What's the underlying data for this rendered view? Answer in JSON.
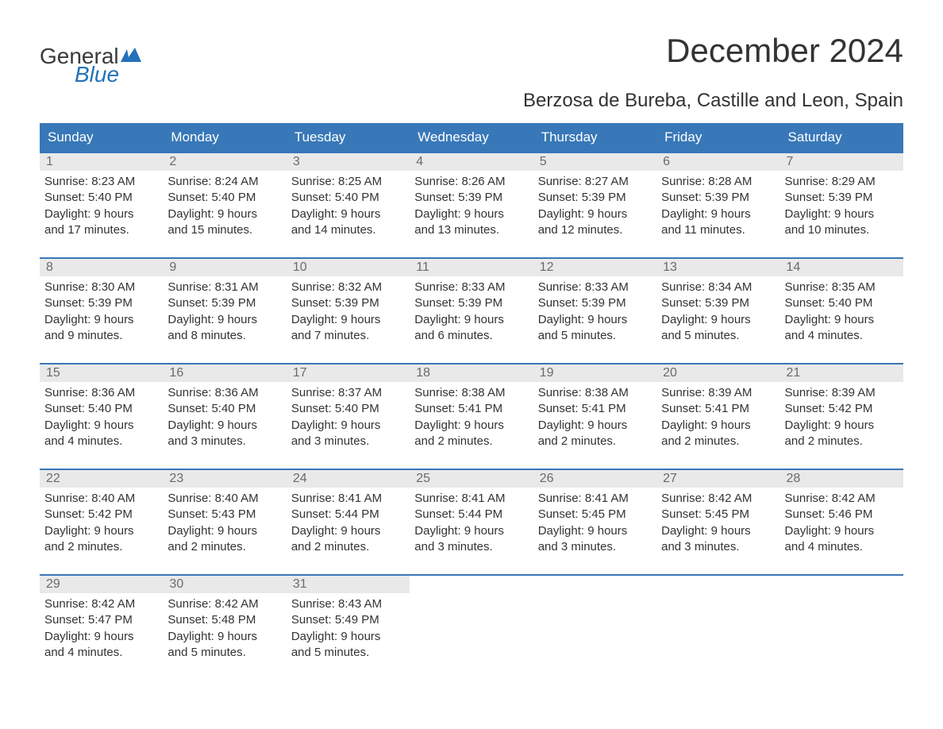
{
  "brand": {
    "general": "General",
    "blue": "Blue"
  },
  "title": "December 2024",
  "subtitle": "Berzosa de Bureba, Castille and Leon, Spain",
  "colors": {
    "header_bg": "#3878b8",
    "header_text": "#ffffff",
    "daynum_bg": "#e9e9e9",
    "daynum_text": "#6a6a6a",
    "body_text": "#333333",
    "accent": "#2472b8",
    "background": "#ffffff"
  },
  "day_names": [
    "Sunday",
    "Monday",
    "Tuesday",
    "Wednesday",
    "Thursday",
    "Friday",
    "Saturday"
  ],
  "weeks": [
    [
      {
        "n": "1",
        "sunrise": "Sunrise: 8:23 AM",
        "sunset": "Sunset: 5:40 PM",
        "d1": "Daylight: 9 hours",
        "d2": "and 17 minutes."
      },
      {
        "n": "2",
        "sunrise": "Sunrise: 8:24 AM",
        "sunset": "Sunset: 5:40 PM",
        "d1": "Daylight: 9 hours",
        "d2": "and 15 minutes."
      },
      {
        "n": "3",
        "sunrise": "Sunrise: 8:25 AM",
        "sunset": "Sunset: 5:40 PM",
        "d1": "Daylight: 9 hours",
        "d2": "and 14 minutes."
      },
      {
        "n": "4",
        "sunrise": "Sunrise: 8:26 AM",
        "sunset": "Sunset: 5:39 PM",
        "d1": "Daylight: 9 hours",
        "d2": "and 13 minutes."
      },
      {
        "n": "5",
        "sunrise": "Sunrise: 8:27 AM",
        "sunset": "Sunset: 5:39 PM",
        "d1": "Daylight: 9 hours",
        "d2": "and 12 minutes."
      },
      {
        "n": "6",
        "sunrise": "Sunrise: 8:28 AM",
        "sunset": "Sunset: 5:39 PM",
        "d1": "Daylight: 9 hours",
        "d2": "and 11 minutes."
      },
      {
        "n": "7",
        "sunrise": "Sunrise: 8:29 AM",
        "sunset": "Sunset: 5:39 PM",
        "d1": "Daylight: 9 hours",
        "d2": "and 10 minutes."
      }
    ],
    [
      {
        "n": "8",
        "sunrise": "Sunrise: 8:30 AM",
        "sunset": "Sunset: 5:39 PM",
        "d1": "Daylight: 9 hours",
        "d2": "and 9 minutes."
      },
      {
        "n": "9",
        "sunrise": "Sunrise: 8:31 AM",
        "sunset": "Sunset: 5:39 PM",
        "d1": "Daylight: 9 hours",
        "d2": "and 8 minutes."
      },
      {
        "n": "10",
        "sunrise": "Sunrise: 8:32 AM",
        "sunset": "Sunset: 5:39 PM",
        "d1": "Daylight: 9 hours",
        "d2": "and 7 minutes."
      },
      {
        "n": "11",
        "sunrise": "Sunrise: 8:33 AM",
        "sunset": "Sunset: 5:39 PM",
        "d1": "Daylight: 9 hours",
        "d2": "and 6 minutes."
      },
      {
        "n": "12",
        "sunrise": "Sunrise: 8:33 AM",
        "sunset": "Sunset: 5:39 PM",
        "d1": "Daylight: 9 hours",
        "d2": "and 5 minutes."
      },
      {
        "n": "13",
        "sunrise": "Sunrise: 8:34 AM",
        "sunset": "Sunset: 5:39 PM",
        "d1": "Daylight: 9 hours",
        "d2": "and 5 minutes."
      },
      {
        "n": "14",
        "sunrise": "Sunrise: 8:35 AM",
        "sunset": "Sunset: 5:40 PM",
        "d1": "Daylight: 9 hours",
        "d2": "and 4 minutes."
      }
    ],
    [
      {
        "n": "15",
        "sunrise": "Sunrise: 8:36 AM",
        "sunset": "Sunset: 5:40 PM",
        "d1": "Daylight: 9 hours",
        "d2": "and 4 minutes."
      },
      {
        "n": "16",
        "sunrise": "Sunrise: 8:36 AM",
        "sunset": "Sunset: 5:40 PM",
        "d1": "Daylight: 9 hours",
        "d2": "and 3 minutes."
      },
      {
        "n": "17",
        "sunrise": "Sunrise: 8:37 AM",
        "sunset": "Sunset: 5:40 PM",
        "d1": "Daylight: 9 hours",
        "d2": "and 3 minutes."
      },
      {
        "n": "18",
        "sunrise": "Sunrise: 8:38 AM",
        "sunset": "Sunset: 5:41 PM",
        "d1": "Daylight: 9 hours",
        "d2": "and 2 minutes."
      },
      {
        "n": "19",
        "sunrise": "Sunrise: 8:38 AM",
        "sunset": "Sunset: 5:41 PM",
        "d1": "Daylight: 9 hours",
        "d2": "and 2 minutes."
      },
      {
        "n": "20",
        "sunrise": "Sunrise: 8:39 AM",
        "sunset": "Sunset: 5:41 PM",
        "d1": "Daylight: 9 hours",
        "d2": "and 2 minutes."
      },
      {
        "n": "21",
        "sunrise": "Sunrise: 8:39 AM",
        "sunset": "Sunset: 5:42 PM",
        "d1": "Daylight: 9 hours",
        "d2": "and 2 minutes."
      }
    ],
    [
      {
        "n": "22",
        "sunrise": "Sunrise: 8:40 AM",
        "sunset": "Sunset: 5:42 PM",
        "d1": "Daylight: 9 hours",
        "d2": "and 2 minutes."
      },
      {
        "n": "23",
        "sunrise": "Sunrise: 8:40 AM",
        "sunset": "Sunset: 5:43 PM",
        "d1": "Daylight: 9 hours",
        "d2": "and 2 minutes."
      },
      {
        "n": "24",
        "sunrise": "Sunrise: 8:41 AM",
        "sunset": "Sunset: 5:44 PM",
        "d1": "Daylight: 9 hours",
        "d2": "and 2 minutes."
      },
      {
        "n": "25",
        "sunrise": "Sunrise: 8:41 AM",
        "sunset": "Sunset: 5:44 PM",
        "d1": "Daylight: 9 hours",
        "d2": "and 3 minutes."
      },
      {
        "n": "26",
        "sunrise": "Sunrise: 8:41 AM",
        "sunset": "Sunset: 5:45 PM",
        "d1": "Daylight: 9 hours",
        "d2": "and 3 minutes."
      },
      {
        "n": "27",
        "sunrise": "Sunrise: 8:42 AM",
        "sunset": "Sunset: 5:45 PM",
        "d1": "Daylight: 9 hours",
        "d2": "and 3 minutes."
      },
      {
        "n": "28",
        "sunrise": "Sunrise: 8:42 AM",
        "sunset": "Sunset: 5:46 PM",
        "d1": "Daylight: 9 hours",
        "d2": "and 4 minutes."
      }
    ],
    [
      {
        "n": "29",
        "sunrise": "Sunrise: 8:42 AM",
        "sunset": "Sunset: 5:47 PM",
        "d1": "Daylight: 9 hours",
        "d2": "and 4 minutes."
      },
      {
        "n": "30",
        "sunrise": "Sunrise: 8:42 AM",
        "sunset": "Sunset: 5:48 PM",
        "d1": "Daylight: 9 hours",
        "d2": "and 5 minutes."
      },
      {
        "n": "31",
        "sunrise": "Sunrise: 8:43 AM",
        "sunset": "Sunset: 5:49 PM",
        "d1": "Daylight: 9 hours",
        "d2": "and 5 minutes."
      },
      {
        "empty": true
      },
      {
        "empty": true
      },
      {
        "empty": true
      },
      {
        "empty": true
      }
    ]
  ]
}
